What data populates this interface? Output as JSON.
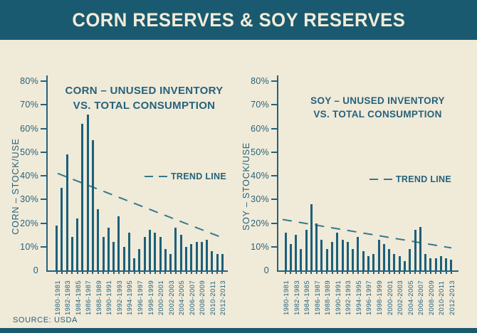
{
  "header": {
    "title": "CORN RESERVES & SOY RESERVES"
  },
  "footer": {
    "source": "SOURCE: USDA"
  },
  "colors": {
    "header_bg": "#1a5a70",
    "header_text": "#f2ecd9",
    "background": "#f0ead9",
    "bar": "#1b607a",
    "axis_text": "#26627a",
    "trend_line": "#35788c"
  },
  "chart_data": [
    {
      "type": "bar",
      "title": "CORN – UNUSED INVENTORY VS. TOTAL CONSUMPTION",
      "title_lines": [
        "CORN – UNUSED INVENTORY",
        "VS. TOTAL CONSUMPTION"
      ],
      "ylabel": "CORN – STOCK/USE",
      "trend_label": "TREND LINE",
      "ylim": [
        0,
        80
      ],
      "yticks": [
        "80%",
        "70%",
        "60%",
        "50%",
        "40%",
        "30%",
        "20%",
        "10%",
        "0"
      ],
      "x_tick_labels": [
        "1980-1981",
        "1982-1983",
        "1984-1985",
        "1986-1987",
        "1988-1989",
        "1990-1991",
        "1992-1993",
        "1994-1995",
        "1996-1997",
        "1998-1999",
        "2000-2001",
        "2002-2003",
        "2004-2005",
        "2006-2007",
        "2008-2009",
        "2010-2011",
        "2012-2013"
      ],
      "x_label_every_n_bars": 2,
      "values": [
        19,
        35,
        49,
        14,
        22,
        62,
        66,
        55,
        26,
        14,
        18,
        12,
        23,
        10,
        16,
        5,
        9,
        14,
        17,
        16,
        14,
        9,
        7,
        18,
        15,
        10,
        11,
        12,
        12,
        13,
        8,
        7,
        7
      ],
      "trend": {
        "start_pct": 41,
        "end_pct": 13.5
      }
    },
    {
      "type": "bar",
      "title": "SOY – UNUSED INVENTORY VS. TOTAL CONSUMPTION",
      "title_lines": [
        "SOY – UNUSED INVENTORY",
        "VS. TOTAL CONSUMPTION"
      ],
      "ylabel": "SOY – STOCK/USE",
      "trend_label": "TREND LINE",
      "ylim": [
        0,
        80
      ],
      "yticks": [
        "80%",
        "70%",
        "60%",
        "50%",
        "40%",
        "30%",
        "20%",
        "10%",
        "0"
      ],
      "x_tick_labels": [
        "1980-1981",
        "1982-1983",
        "1984-1985",
        "1986-1987",
        "1988-1989",
        "1990-1991",
        "1992-1993",
        "1994-1995",
        "1996-1997",
        "1998-1999",
        "2000-2001",
        "2002-2003",
        "2004-2005",
        "2006-2007",
        "2008-2009",
        "2010-2011",
        "2012-2013"
      ],
      "x_label_every_n_bars": 2,
      "values": [
        16,
        11,
        15,
        9,
        17,
        28,
        20,
        13,
        9,
        12,
        16,
        13,
        12,
        9,
        14,
        8,
        6,
        7,
        13,
        11,
        9,
        7,
        6,
        4,
        9,
        17,
        18.5,
        7,
        5,
        5,
        6,
        5,
        4.5
      ],
      "trend": {
        "start_pct": 21.5,
        "end_pct": 9.5
      }
    }
  ]
}
